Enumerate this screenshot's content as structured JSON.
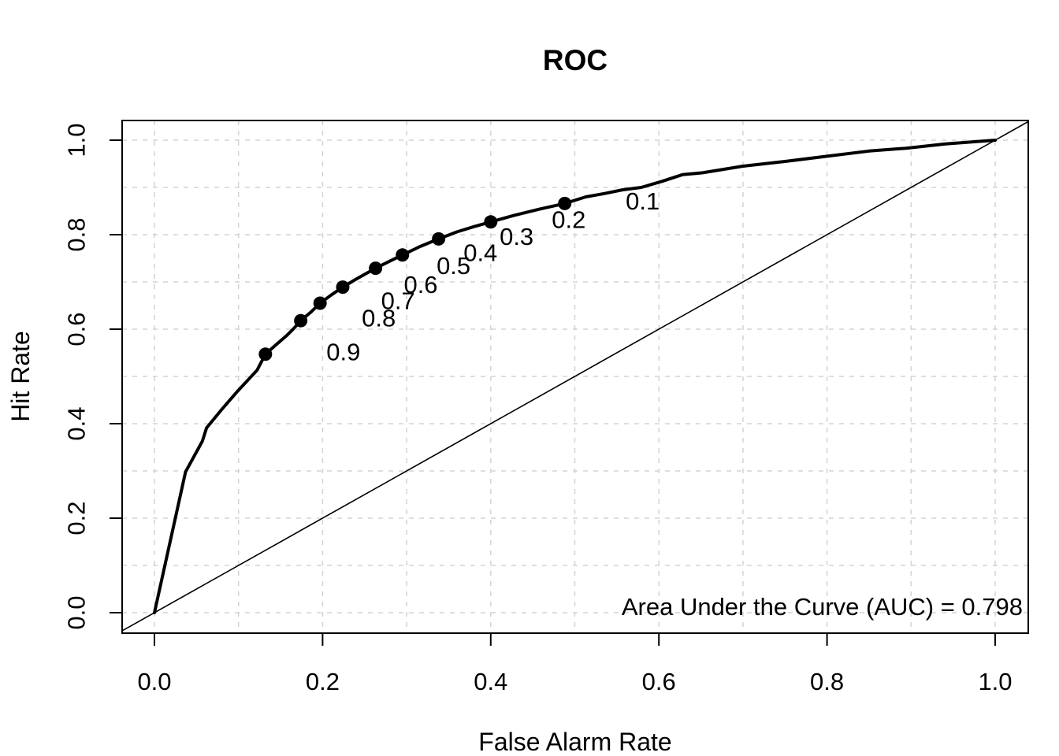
{
  "title": "ROC",
  "annotation": "Area Under the Curve (AUC) = 0.798",
  "axes": {
    "xlabel": "False Alarm Rate",
    "ylabel": "Hit Rate",
    "x_tick_labels": [
      "0.0",
      "0.2",
      "0.4",
      "0.6",
      "0.8",
      "1.0"
    ],
    "y_tick_labels": [
      "0.0",
      "0.2",
      "0.4",
      "0.6",
      "0.8",
      "1.0"
    ],
    "x_tick_values": [
      0,
      0.2,
      0.4,
      0.6,
      0.8,
      1.0
    ],
    "y_tick_values": [
      0,
      0.2,
      0.4,
      0.6,
      0.8,
      1.0
    ]
  },
  "colors": {
    "foreground": "#000000",
    "gridline": "#d3d3d3",
    "background": "#ffffff"
  },
  "chart_data": {
    "type": "line",
    "title": "ROC",
    "xlabel": "False Alarm Rate",
    "ylabel": "Hit Rate",
    "xlim": [
      0,
      1
    ],
    "ylim": [
      0,
      1
    ],
    "grid": {
      "on": true,
      "step": 0.1,
      "style": "dashed",
      "color": "#d3d3d3"
    },
    "auc": 0.798,
    "annotation": "Area Under the Curve (AUC) = 0.798",
    "series": [
      {
        "name": "ROC curve",
        "style": "thick-solid",
        "points": [
          [
            0.0,
            0.0
          ],
          [
            0.037,
            0.298
          ],
          [
            0.057,
            0.363
          ],
          [
            0.062,
            0.391
          ],
          [
            0.08,
            0.43
          ],
          [
            0.099,
            0.469
          ],
          [
            0.122,
            0.513
          ],
          [
            0.132,
            0.547
          ],
          [
            0.144,
            0.566
          ],
          [
            0.157,
            0.586
          ],
          [
            0.166,
            0.602
          ],
          [
            0.174,
            0.618
          ],
          [
            0.186,
            0.636
          ],
          [
            0.197,
            0.655
          ],
          [
            0.21,
            0.672
          ],
          [
            0.224,
            0.689
          ],
          [
            0.24,
            0.706
          ],
          [
            0.253,
            0.719
          ],
          [
            0.263,
            0.729
          ],
          [
            0.28,
            0.744
          ],
          [
            0.295,
            0.757
          ],
          [
            0.316,
            0.775
          ],
          [
            0.338,
            0.791
          ],
          [
            0.36,
            0.806
          ],
          [
            0.38,
            0.817
          ],
          [
            0.4,
            0.827
          ],
          [
            0.428,
            0.841
          ],
          [
            0.458,
            0.854
          ],
          [
            0.488,
            0.866
          ],
          [
            0.513,
            0.88
          ],
          [
            0.535,
            0.887
          ],
          [
            0.557,
            0.895
          ],
          [
            0.579,
            0.9
          ],
          [
            0.604,
            0.913
          ],
          [
            0.628,
            0.927
          ],
          [
            0.652,
            0.931
          ],
          [
            0.7,
            0.945
          ],
          [
            0.75,
            0.955
          ],
          [
            0.8,
            0.966
          ],
          [
            0.85,
            0.977
          ],
          [
            0.894,
            0.983
          ],
          [
            0.941,
            0.992
          ],
          [
            1.0,
            1.0
          ]
        ]
      },
      {
        "name": "chance diagonal",
        "style": "thin-solid",
        "points": [
          [
            0,
            0
          ],
          [
            1,
            1
          ]
        ]
      }
    ],
    "threshold_points": [
      {
        "label": "0.1",
        "x": 0.488,
        "y": 0.866
      },
      {
        "label": "0.2",
        "x": 0.4,
        "y": 0.827
      },
      {
        "label": "0.3",
        "x": 0.338,
        "y": 0.791
      },
      {
        "label": "0.4",
        "x": 0.295,
        "y": 0.757
      },
      {
        "label": "0.5",
        "x": 0.263,
        "y": 0.729
      },
      {
        "label": "0.6",
        "x": 0.224,
        "y": 0.689
      },
      {
        "label": "0.7",
        "x": 0.197,
        "y": 0.655
      },
      {
        "label": "0.8",
        "x": 0.174,
        "y": 0.618
      },
      {
        "label": "0.9",
        "x": 0.132,
        "y": 0.547
      }
    ]
  }
}
